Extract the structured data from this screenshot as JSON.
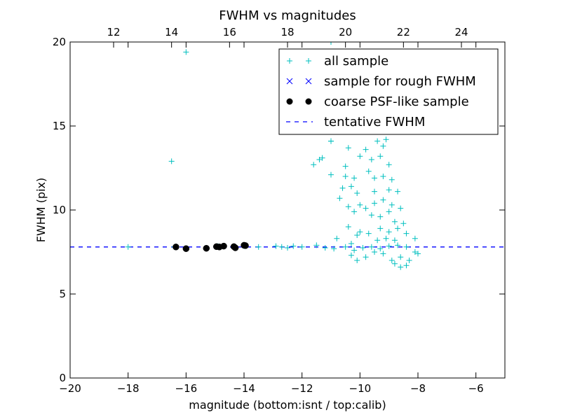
{
  "chart_data": {
    "type": "scatter",
    "title": "FWHM vs magnitudes",
    "xlabel": "magnitude (bottom:isnt / top:calib)",
    "ylabel": "FWHM (pix)",
    "xlim": [
      -20,
      -5
    ],
    "ylim": [
      0,
      20
    ],
    "x_ticks": [
      -20,
      -18,
      -16,
      -14,
      -12,
      -10,
      -8,
      -6
    ],
    "x_tick_labels": [
      "−20",
      "−18",
      "−16",
      "−14",
      "−12",
      "−10",
      "−8",
      "−6"
    ],
    "y_ticks": [
      0,
      5,
      10,
      15,
      20
    ],
    "y_tick_labels": [
      "0",
      "5",
      "10",
      "15",
      "20"
    ],
    "top_axis": {
      "xlim": [
        10.5,
        25.5
      ],
      "ticks": [
        12,
        14,
        16,
        18,
        20,
        22,
        24
      ],
      "tick_labels": [
        "12",
        "14",
        "16",
        "18",
        "20",
        "22",
        "24"
      ]
    },
    "grid": false,
    "legend_position": "top-right",
    "series": [
      {
        "name": "all sample",
        "marker": "plus",
        "color": "#00bfbf",
        "points": [
          [
            -16.5,
            12.9
          ],
          [
            -16.0,
            19.4
          ],
          [
            -18.0,
            7.8
          ],
          [
            -16.4,
            7.8
          ],
          [
            -16.0,
            7.7
          ],
          [
            -15.3,
            7.75
          ],
          [
            -14.9,
            7.85
          ],
          [
            -14.3,
            7.8
          ],
          [
            -14.0,
            7.85
          ],
          [
            -13.5,
            7.8
          ],
          [
            -12.9,
            7.85
          ],
          [
            -12.7,
            7.8
          ],
          [
            -12.5,
            7.75
          ],
          [
            -12.3,
            7.85
          ],
          [
            -12.0,
            7.8
          ],
          [
            -11.5,
            7.9
          ],
          [
            -11.2,
            7.75
          ],
          [
            -10.9,
            7.7
          ],
          [
            -10.5,
            7.8
          ],
          [
            -10.2,
            7.6
          ],
          [
            -9.9,
            7.75
          ],
          [
            -9.6,
            7.8
          ],
          [
            -9.3,
            7.7
          ],
          [
            -9.0,
            7.85
          ],
          [
            -8.7,
            7.9
          ],
          [
            -8.4,
            7.8
          ],
          [
            -8.1,
            7.5
          ],
          [
            -8.0,
            7.4
          ],
          [
            -11.0,
            20.0
          ],
          [
            -11.0,
            14.1
          ],
          [
            -11.4,
            13.0
          ],
          [
            -11.6,
            12.7
          ],
          [
            -11.0,
            14.1
          ],
          [
            -11.3,
            13.1
          ],
          [
            -11.0,
            12.1
          ],
          [
            -10.4,
            13.7
          ],
          [
            -10.5,
            12.6
          ],
          [
            -10.0,
            13.2
          ],
          [
            -9.8,
            13.6
          ],
          [
            -9.6,
            13.0
          ],
          [
            -9.4,
            14.1
          ],
          [
            -9.2,
            13.8
          ],
          [
            -9.1,
            14.2
          ],
          [
            -9.3,
            13.2
          ],
          [
            -9.0,
            12.7
          ],
          [
            -10.5,
            12.0
          ],
          [
            -10.2,
            11.9
          ],
          [
            -9.7,
            12.3
          ],
          [
            -9.5,
            11.9
          ],
          [
            -9.2,
            12.0
          ],
          [
            -8.9,
            11.8
          ],
          [
            -10.6,
            11.3
          ],
          [
            -10.3,
            11.4
          ],
          [
            -10.1,
            11.0
          ],
          [
            -9.5,
            11.1
          ],
          [
            -9.0,
            11.2
          ],
          [
            -8.7,
            11.1
          ],
          [
            -10.7,
            10.7
          ],
          [
            -10.4,
            10.2
          ],
          [
            -10.0,
            10.3
          ],
          [
            -9.8,
            10.1
          ],
          [
            -9.5,
            10.4
          ],
          [
            -9.2,
            10.6
          ],
          [
            -8.9,
            10.3
          ],
          [
            -8.6,
            10.1
          ],
          [
            -10.2,
            9.9
          ],
          [
            -9.6,
            9.7
          ],
          [
            -9.3,
            9.6
          ],
          [
            -9.0,
            9.9
          ],
          [
            -8.8,
            9.3
          ],
          [
            -8.5,
            9.2
          ],
          [
            -10.4,
            9.0
          ],
          [
            -10.0,
            8.7
          ],
          [
            -9.7,
            8.6
          ],
          [
            -9.3,
            8.9
          ],
          [
            -9.0,
            8.7
          ],
          [
            -8.7,
            8.9
          ],
          [
            -8.4,
            8.6
          ],
          [
            -10.8,
            8.3
          ],
          [
            -10.3,
            8.0
          ],
          [
            -10.1,
            8.5
          ],
          [
            -9.4,
            8.2
          ],
          [
            -9.1,
            8.3
          ],
          [
            -8.8,
            8.2
          ],
          [
            -8.1,
            8.3
          ],
          [
            -10.3,
            7.3
          ],
          [
            -10.1,
            7.0
          ],
          [
            -9.8,
            7.2
          ],
          [
            -9.5,
            7.5
          ],
          [
            -9.2,
            7.4
          ],
          [
            -8.9,
            7.0
          ],
          [
            -8.8,
            6.8
          ],
          [
            -8.6,
            7.2
          ],
          [
            -8.4,
            6.7
          ],
          [
            -8.3,
            7.0
          ],
          [
            -8.6,
            6.6
          ]
        ]
      },
      {
        "name": "sample for rough FWHM",
        "marker": "x",
        "color": "#0000ff",
        "points": []
      },
      {
        "name": "coarse PSF-like sample",
        "marker": "circle",
        "color": "#000000",
        "points": [
          [
            -16.35,
            7.8
          ],
          [
            -16.0,
            7.7
          ],
          [
            -15.3,
            7.72
          ],
          [
            -14.95,
            7.82
          ],
          [
            -14.85,
            7.8
          ],
          [
            -14.7,
            7.85
          ],
          [
            -14.35,
            7.82
          ],
          [
            -14.3,
            7.75
          ],
          [
            -14.0,
            7.9
          ],
          [
            -13.95,
            7.88
          ]
        ]
      },
      {
        "name": "tentative FWHM",
        "marker": "dashed-line",
        "color": "#0000ff",
        "value": 7.8
      }
    ]
  }
}
